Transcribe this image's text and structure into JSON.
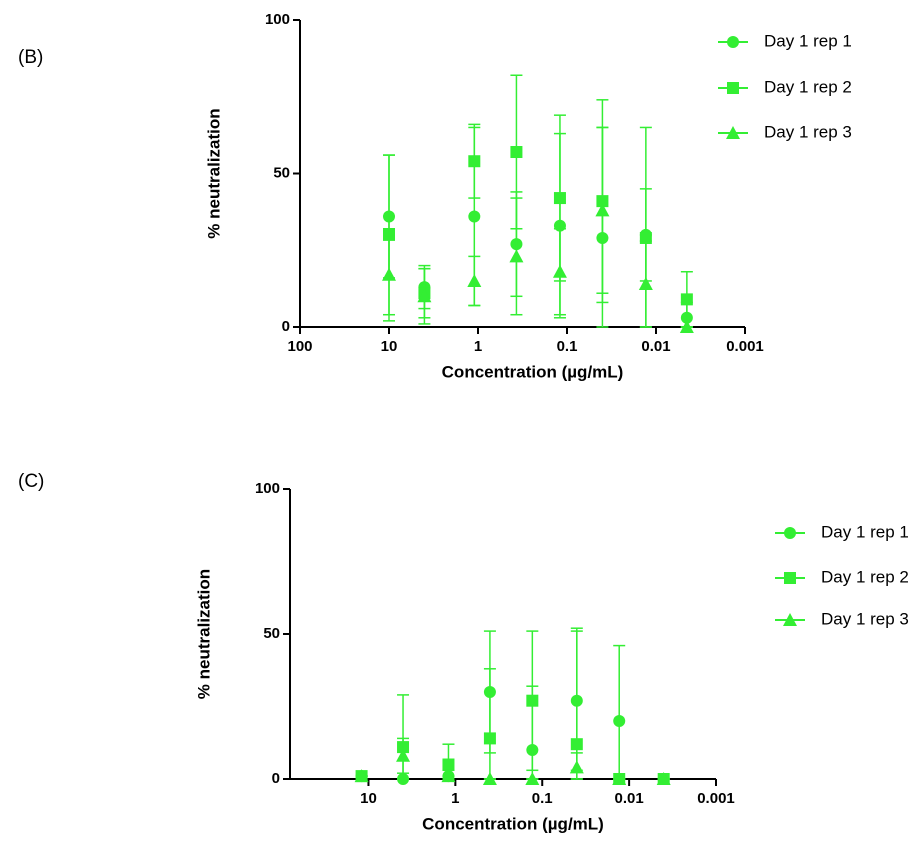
{
  "chart_data": [
    {
      "type": "scatter",
      "panel_label": "(B)",
      "x_label": "Concentration (µg/mL)",
      "y_label": "% neutralization",
      "log_x": true,
      "xlim": [
        100,
        0.001
      ],
      "xticks": [
        100,
        10,
        1,
        0.1,
        0.01,
        0.001
      ],
      "ylim": [
        0,
        100
      ],
      "yticks": [
        0,
        50,
        100
      ],
      "x": [
        10,
        4,
        1.1,
        0.37,
        0.12,
        0.04,
        0.013,
        0.0045
      ],
      "series": [
        {
          "name": "Day 1 rep 1",
          "color": "#33ee33",
          "marker": "circle",
          "values": [
            36,
            13,
            36,
            27,
            33,
            29,
            30,
            3
          ],
          "errors": [
            20,
            7,
            29,
            17,
            30,
            36,
            15,
            5
          ]
        },
        {
          "name": "Day 1 rep 2",
          "color": "#33ee33",
          "marker": "square",
          "values": [
            30,
            11,
            54,
            57,
            42,
            41,
            29,
            9
          ],
          "errors": [
            26,
            8,
            12,
            25,
            27,
            33,
            36,
            9
          ]
        },
        {
          "name": "Day 1 rep 3",
          "color": "#33ee33",
          "marker": "triangle",
          "values": [
            17,
            10,
            15,
            23,
            18,
            38,
            14,
            0
          ],
          "errors": [
            15,
            9,
            8,
            19,
            14,
            27,
            14,
            0
          ]
        }
      ]
    },
    {
      "type": "scatter",
      "panel_label": "(C)",
      "x_label": "Concentration (µg/mL)",
      "y_label": "% neutralization",
      "log_x": true,
      "xlim": [
        80,
        0.001
      ],
      "xticks": [
        10,
        1,
        0.1,
        0.01,
        0.001
      ],
      "ylim": [
        0,
        100
      ],
      "yticks": [
        0,
        50,
        100
      ],
      "x": [
        12,
        4,
        1.2,
        0.4,
        0.13,
        0.04,
        0.013,
        0.004
      ],
      "series": [
        {
          "name": "Day 1 rep 1",
          "color": "#33ee33",
          "marker": "circle",
          "values": [
            1,
            0,
            1,
            30,
            10,
            27,
            20,
            0
          ],
          "errors": [
            0,
            0,
            0,
            21,
            22,
            24,
            26,
            0
          ]
        },
        {
          "name": "Day 1 rep 2",
          "color": "#33ee33",
          "marker": "square",
          "values": [
            1,
            11,
            5,
            14,
            27,
            12,
            0,
            0
          ],
          "errors": [
            0,
            18,
            7,
            24,
            24,
            40,
            0,
            0
          ]
        },
        {
          "name": "Day 1 rep 3",
          "color": "#33ee33",
          "marker": "triangle",
          "values": [
            1,
            8,
            1,
            0,
            0,
            4,
            0,
            0
          ],
          "errors": [
            0,
            6,
            2,
            0,
            0,
            5,
            0,
            0
          ]
        }
      ]
    }
  ]
}
